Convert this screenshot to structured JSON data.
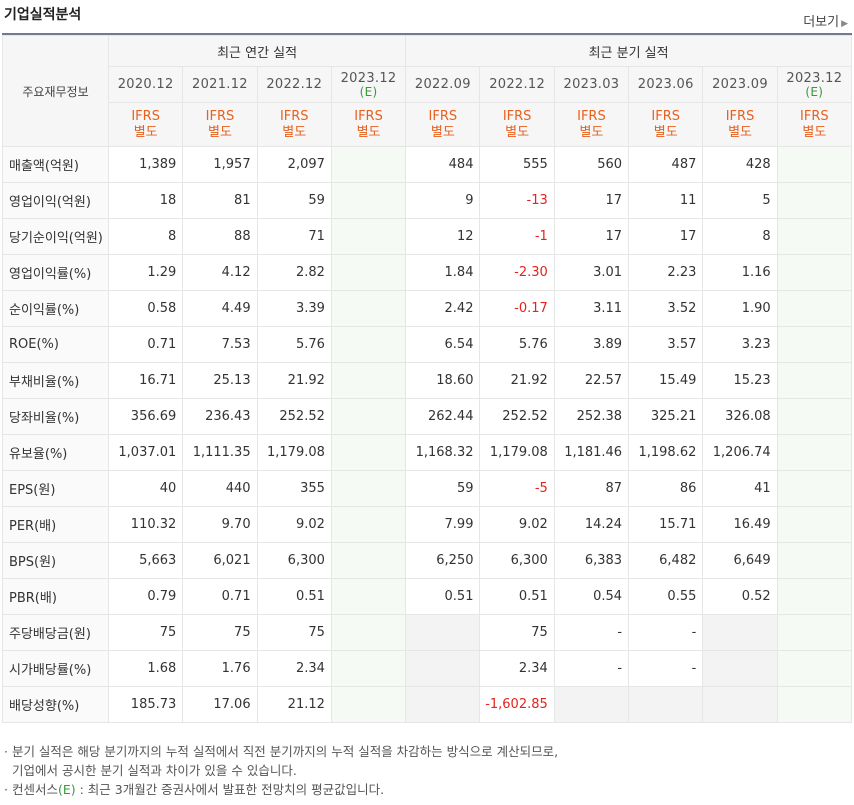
{
  "title": "기업실적분석",
  "more_label": "더보기",
  "header": {
    "main": "주요재무정보",
    "annual_group": "최근 연간 실적",
    "quarter_group": "최근 분기 실적",
    "ifrs_line1": "IFRS",
    "ifrs_line2": "별도",
    "estimate_mark": "(E)"
  },
  "periods": [
    {
      "label": "2020.12",
      "estimate": false
    },
    {
      "label": "2021.12",
      "estimate": false
    },
    {
      "label": "2022.12",
      "estimate": false
    },
    {
      "label": "2023.12",
      "estimate": true
    },
    {
      "label": "2022.09",
      "estimate": false
    },
    {
      "label": "2022.12",
      "estimate": false
    },
    {
      "label": "2023.03",
      "estimate": false
    },
    {
      "label": "2023.06",
      "estimate": false
    },
    {
      "label": "2023.09",
      "estimate": false
    },
    {
      "label": "2023.12",
      "estimate": true
    }
  ],
  "rows": [
    {
      "label": "매출액(억원)",
      "values": [
        "1,389",
        "1,957",
        "2,097",
        "",
        "484",
        "555",
        "560",
        "487",
        "428",
        ""
      ],
      "group_start": true
    },
    {
      "label": "영업이익(억원)",
      "values": [
        "18",
        "81",
        "59",
        "",
        "9",
        "-13",
        "17",
        "11",
        "5",
        ""
      ]
    },
    {
      "label": "당기순이익(억원)",
      "values": [
        "8",
        "88",
        "71",
        "",
        "12",
        "-1",
        "17",
        "17",
        "8",
        ""
      ]
    },
    {
      "label": "영업이익률(%)",
      "values": [
        "1.29",
        "4.12",
        "2.82",
        "",
        "1.84",
        "-2.30",
        "3.01",
        "2.23",
        "1.16",
        ""
      ],
      "group_start": true
    },
    {
      "label": "순이익률(%)",
      "values": [
        "0.58",
        "4.49",
        "3.39",
        "",
        "2.42",
        "-0.17",
        "3.11",
        "3.52",
        "1.90",
        ""
      ]
    },
    {
      "label": "ROE(%)",
      "values": [
        "0.71",
        "7.53",
        "5.76",
        "",
        "6.54",
        "5.76",
        "3.89",
        "3.57",
        "3.23",
        ""
      ]
    },
    {
      "label": "부채비율(%)",
      "values": [
        "16.71",
        "25.13",
        "21.92",
        "",
        "18.60",
        "21.92",
        "22.57",
        "15.49",
        "15.23",
        ""
      ],
      "group_start": true
    },
    {
      "label": "당좌비율(%)",
      "values": [
        "356.69",
        "236.43",
        "252.52",
        "",
        "262.44",
        "252.52",
        "252.38",
        "325.21",
        "326.08",
        ""
      ]
    },
    {
      "label": "유보율(%)",
      "values": [
        "1,037.01",
        "1,111.35",
        "1,179.08",
        "",
        "1,168.32",
        "1,179.08",
        "1,181.46",
        "1,198.62",
        "1,206.74",
        ""
      ]
    },
    {
      "label": "EPS(원)",
      "values": [
        "40",
        "440",
        "355",
        "",
        "59",
        "-5",
        "87",
        "86",
        "41",
        ""
      ],
      "group_start": true
    },
    {
      "label": "PER(배)",
      "values": [
        "110.32",
        "9.70",
        "9.02",
        "",
        "7.99",
        "9.02",
        "14.24",
        "15.71",
        "16.49",
        ""
      ]
    },
    {
      "label": "BPS(원)",
      "values": [
        "5,663",
        "6,021",
        "6,300",
        "",
        "6,250",
        "6,300",
        "6,383",
        "6,482",
        "6,649",
        ""
      ]
    },
    {
      "label": "PBR(배)",
      "values": [
        "0.79",
        "0.71",
        "0.51",
        "",
        "0.51",
        "0.51",
        "0.54",
        "0.55",
        "0.52",
        ""
      ]
    },
    {
      "label": "주당배당금(원)",
      "values": [
        "75",
        "75",
        "75",
        "",
        "",
        "75",
        "-",
        "-",
        "",
        ""
      ],
      "group_start": true,
      "gray_cols": [
        4,
        8
      ]
    },
    {
      "label": "시가배당률(%)",
      "values": [
        "1.68",
        "1.76",
        "2.34",
        "",
        "",
        "2.34",
        "-",
        "-",
        "",
        ""
      ],
      "gray_cols": [
        4,
        8
      ]
    },
    {
      "label": "배당성향(%)",
      "values": [
        "185.73",
        "17.06",
        "21.12",
        "",
        "",
        "-1,602.85",
        "",
        "",
        "",
        ""
      ],
      "gray_cols": [
        4,
        6,
        7,
        8
      ]
    }
  ],
  "notes": {
    "line1": "· 분기 실적은 해당 분기까지의 누적 실적에서 직전 분기까지의 누적 실적을 차감하는 방식으로 계산되므로,",
    "line2": "기업에서 공시한 분기 실적과 차이가 있을 수 있습니다.",
    "line3_prefix": "· 컨센서스",
    "line3_mark": "(E)",
    "line3_suffix": " : 최근 3개월간 증권사에서 발표한 전망치의 평균값입니다."
  }
}
